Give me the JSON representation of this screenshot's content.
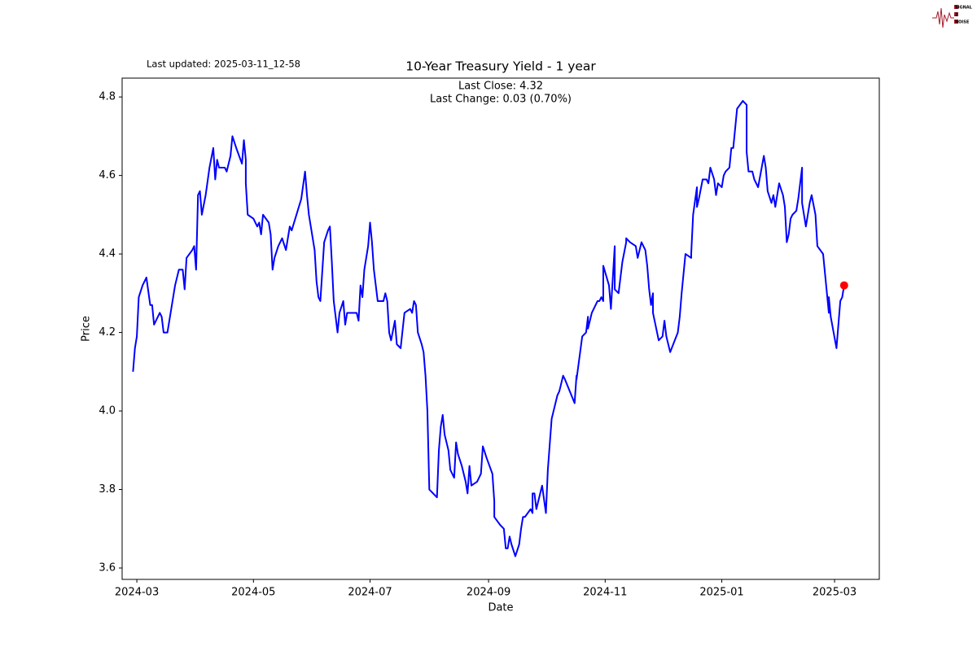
{
  "chart_data": {
    "type": "line",
    "title": "10-Year Treasury Yield - 1 year",
    "subtitle": "Last updated: 2025-03-11_12-58",
    "annotations": [
      "Last Close: 4.32",
      "Last Change: 0.03 (0.70%)"
    ],
    "logo": [
      "SIGNAL",
      "2",
      "NOISE"
    ],
    "x_label": "Date",
    "y_label": "Price",
    "xlim": [
      -7.7,
      388.4
    ],
    "xticks": [
      {
        "value": 0,
        "label": "2024-03"
      },
      {
        "value": 61,
        "label": "2024-05"
      },
      {
        "value": 122,
        "label": "2024-07"
      },
      {
        "value": 184,
        "label": "2024-09"
      },
      {
        "value": 245,
        "label": "2024-11"
      },
      {
        "value": 306,
        "label": "2025-01"
      },
      {
        "value": 365,
        "label": "2025-03"
      }
    ],
    "ylim": [
      3.571,
      4.848
    ],
    "yticks": [
      3.6,
      3.8,
      {
        "value": 4,
        "label": "4.0"
      },
      4.2,
      4.4,
      4.6,
      4.8
    ],
    "grid": false,
    "last_point_color": "#ff0000",
    "x": [
      -2,
      -1,
      0,
      1,
      3,
      5,
      7,
      8,
      9,
      12,
      13,
      14,
      16,
      18,
      20,
      22,
      24,
      25,
      26,
      29,
      30,
      31,
      32,
      33,
      34,
      36,
      38,
      40,
      41,
      42,
      43,
      46,
      47,
      49,
      50,
      52,
      55,
      56,
      57,
      57,
      58,
      61,
      62,
      63,
      64,
      65,
      66,
      69,
      70,
      71,
      72,
      74,
      76,
      78,
      79,
      80,
      81,
      86,
      88,
      89,
      90,
      93,
      94,
      95,
      96,
      98,
      100,
      101,
      102,
      103,
      104,
      105,
      106,
      108,
      109,
      110,
      112,
      115,
      116,
      117,
      118,
      119,
      121,
      122,
      123,
      124,
      126,
      128,
      129,
      130,
      131,
      132,
      133,
      135,
      136,
      138,
      140,
      143,
      144,
      145,
      146,
      147,
      149,
      150,
      151,
      152,
      153,
      157,
      158,
      159,
      160,
      161,
      163,
      164,
      166,
      167,
      168,
      170,
      172,
      173,
      174,
      175,
      178,
      180,
      181,
      183,
      186,
      187,
      187,
      190,
      192,
      193,
      194,
      195,
      196,
      198,
      200,
      201,
      202,
      203,
      206,
      207,
      207,
      208,
      209,
      212,
      214,
      215,
      217,
      219,
      220,
      221,
      223,
      224,
      229,
      230,
      230,
      233,
      235,
      236,
      236,
      238,
      241,
      242,
      243,
      244,
      244,
      247,
      248,
      250,
      250,
      252,
      254,
      256,
      256,
      258,
      261,
      262,
      264,
      266,
      267,
      268,
      269,
      270,
      270,
      273,
      275,
      276,
      277,
      279,
      283,
      284,
      285,
      287,
      290,
      290,
      291,
      293,
      293,
      294,
      296,
      298,
      299,
      300,
      302,
      303,
      304,
      306,
      307,
      308,
      310,
      311,
      312,
      314,
      317,
      319,
      319,
      320,
      322,
      323,
      325,
      328,
      329,
      330,
      332,
      333,
      333,
      334,
      336,
      338,
      339,
      340,
      341,
      342,
      343,
      345,
      346,
      348,
      348,
      350,
      351,
      352,
      353,
      355,
      356,
      359,
      361,
      362,
      362,
      363,
      366,
      368,
      369,
      370
    ],
    "series": [
      {
        "name": "10-Year Treasury Yield",
        "color": "#0000ff",
        "values": [
          4.1,
          4.16,
          4.19,
          4.29,
          4.32,
          4.34,
          4.27,
          4.27,
          4.22,
          4.25,
          4.24,
          4.2,
          4.2,
          4.26,
          4.32,
          4.36,
          4.36,
          4.31,
          4.39,
          4.41,
          4.42,
          4.36,
          4.55,
          4.56,
          4.5,
          4.55,
          4.62,
          4.67,
          4.59,
          4.64,
          4.62,
          4.62,
          4.61,
          4.65,
          4.7,
          4.67,
          4.63,
          4.69,
          4.64,
          4.58,
          4.5,
          4.49,
          4.48,
          4.47,
          4.48,
          4.45,
          4.5,
          4.48,
          4.45,
          4.36,
          4.39,
          4.42,
          4.44,
          4.41,
          4.44,
          4.47,
          4.46,
          4.54,
          4.61,
          4.55,
          4.5,
          4.41,
          4.33,
          4.29,
          4.28,
          4.43,
          4.46,
          4.47,
          4.38,
          4.28,
          4.24,
          4.2,
          4.25,
          4.28,
          4.22,
          4.25,
          4.25,
          4.25,
          4.23,
          4.32,
          4.29,
          4.36,
          4.42,
          4.48,
          4.43,
          4.36,
          4.28,
          4.28,
          4.28,
          4.3,
          4.28,
          4.2,
          4.18,
          4.23,
          4.17,
          4.16,
          4.25,
          4.26,
          4.25,
          4.28,
          4.27,
          4.2,
          4.17,
          4.15,
          4.09,
          4.0,
          3.8,
          3.78,
          3.9,
          3.96,
          3.99,
          3.94,
          3.9,
          3.85,
          3.83,
          3.92,
          3.89,
          3.86,
          3.82,
          3.79,
          3.86,
          3.81,
          3.82,
          3.84,
          3.91,
          3.88,
          3.84,
          3.77,
          3.73,
          3.71,
          3.7,
          3.65,
          3.65,
          3.68,
          3.66,
          3.63,
          3.66,
          3.7,
          3.73,
          3.73,
          3.75,
          3.74,
          3.79,
          3.79,
          3.75,
          3.81,
          3.74,
          3.85,
          3.98,
          4.02,
          4.04,
          4.05,
          4.09,
          4.08,
          4.02,
          4.09,
          4.08,
          4.19,
          4.2,
          4.24,
          4.21,
          4.25,
          4.28,
          4.28,
          4.29,
          4.28,
          4.37,
          4.32,
          4.26,
          4.42,
          4.31,
          4.3,
          4.38,
          4.43,
          4.44,
          4.43,
          4.42,
          4.39,
          4.43,
          4.41,
          4.37,
          4.31,
          4.27,
          4.3,
          4.25,
          4.18,
          4.19,
          4.23,
          4.19,
          4.15,
          4.2,
          4.24,
          4.3,
          4.4,
          4.39,
          4.4,
          4.5,
          4.57,
          4.52,
          4.54,
          4.59,
          4.59,
          4.58,
          4.62,
          4.59,
          4.55,
          4.58,
          4.57,
          4.6,
          4.61,
          4.62,
          4.67,
          4.67,
          4.77,
          4.79,
          4.78,
          4.66,
          4.61,
          4.61,
          4.59,
          4.57,
          4.65,
          4.62,
          4.56,
          4.53,
          4.55,
          4.55,
          4.52,
          4.58,
          4.55,
          4.52,
          4.43,
          4.45,
          4.49,
          4.5,
          4.51,
          4.54,
          4.62,
          4.53,
          4.47,
          4.5,
          4.53,
          4.55,
          4.5,
          4.42,
          4.4,
          4.3,
          4.25,
          4.29,
          4.24,
          4.16,
          4.28,
          4.29,
          4.32
        ]
      }
    ]
  }
}
